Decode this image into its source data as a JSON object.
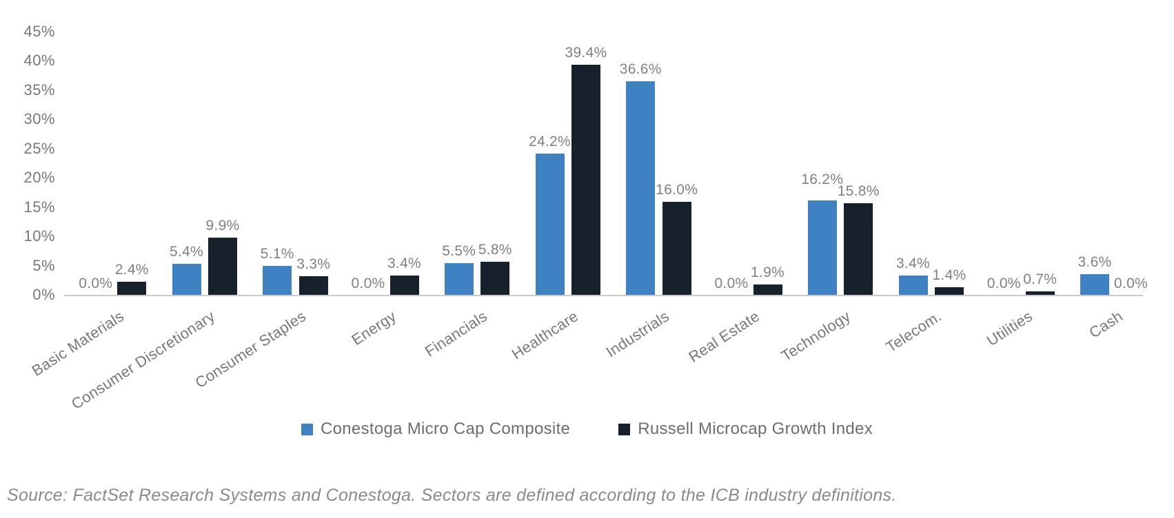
{
  "chart_data": {
    "type": "bar",
    "title": "",
    "categories": [
      "Basic Materials",
      "Consumer Discretionary",
      "Consumer Staples",
      "Energy",
      "Financials",
      "Healthcare",
      "Industrials",
      "Real Estate",
      "Technology",
      "Telecom.",
      "Utilities",
      "Cash"
    ],
    "series": [
      {
        "name": "Conestoga Micro Cap Composite",
        "color": "#3E82C4",
        "values": [
          0.0,
          5.4,
          5.1,
          0.0,
          5.5,
          24.2,
          36.6,
          0.0,
          16.2,
          3.4,
          0.0,
          3.6
        ],
        "labels": [
          "0.0%",
          "5.4%",
          "5.1%",
          "0.0%",
          "5.5%",
          "24.2%",
          "36.6%",
          "0.0%",
          "16.2%",
          "3.4%",
          "0.0%",
          "3.6%"
        ]
      },
      {
        "name": "Russell Microcap Growth Index",
        "color": "#16212D",
        "values": [
          2.4,
          9.9,
          3.3,
          3.4,
          5.8,
          39.4,
          16.0,
          1.9,
          15.8,
          1.4,
          0.7,
          0.0
        ],
        "labels": [
          "2.4%",
          "9.9%",
          "3.3%",
          "3.4%",
          "5.8%",
          "39.4%",
          "16.0%",
          "1.9%",
          "15.8%",
          "1.4%",
          "0.7%",
          "0.0%"
        ]
      }
    ],
    "y_axis": {
      "ticks": [
        "45%",
        "40%",
        "35%",
        "30%",
        "25%",
        "20%",
        "15%",
        "10%",
        "5%",
        "0%"
      ],
      "min": 0,
      "max": 45,
      "step": 5
    },
    "grid": false,
    "legend_position": "bottom"
  },
  "source_note": "Source: FactSet Research Systems and Conestoga. Sectors are defined according to the ICB industry definitions.",
  "colors": {
    "conestoga_blue": "#3E82C4",
    "russell_dark": "#16212D",
    "value_label_gray": "#7F8082",
    "axis_gray": "#77787A",
    "legend_text_gray": "#6D6E70",
    "source_text_gray": "#8A8A8B",
    "baseline_gray": "#C9CACB"
  }
}
